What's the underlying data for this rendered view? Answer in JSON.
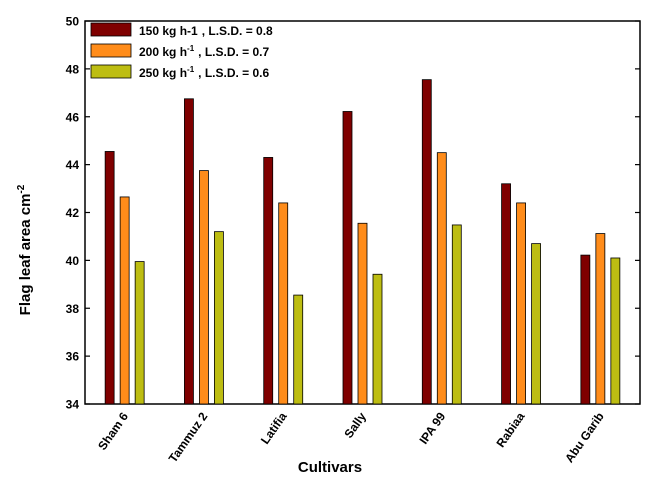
{
  "chart_data": {
    "type": "bar",
    "xlabel": "Cultivars",
    "ylabel": "Flag leaf area cm",
    "ylabel_sup": "-2",
    "ylim": [
      34,
      50
    ],
    "yticks": [
      34,
      36,
      38,
      40,
      42,
      44,
      46,
      48,
      50
    ],
    "grid": false,
    "legend_position": "top-left",
    "categories": [
      "Sham 6",
      "Tammuz 2",
      "Latifia",
      "Sally",
      "IPA 99",
      "Rabiaa",
      "Abu Garib"
    ],
    "series": [
      {
        "name": "150 kg h-1",
        "name_sup": "",
        "lsd": ", L.S.D. = 0.8",
        "color": "#7f0000",
        "values": [
          44.55,
          46.75,
          44.3,
          46.22,
          47.55,
          43.2,
          40.22
        ]
      },
      {
        "name": "200 kg h",
        "name_sup": "-1",
        "lsd": ", L.S.D. = 0.7",
        "color": "#ff8c1a",
        "values": [
          42.65,
          43.75,
          42.4,
          41.55,
          44.5,
          42.4,
          41.12
        ]
      },
      {
        "name": "250 kg h",
        "name_sup": "-1",
        "lsd": ", L.S.D. = 0.6",
        "color": "#bdbd12",
        "values": [
          39.95,
          41.2,
          38.55,
          39.42,
          41.48,
          40.7,
          40.1
        ]
      }
    ]
  }
}
